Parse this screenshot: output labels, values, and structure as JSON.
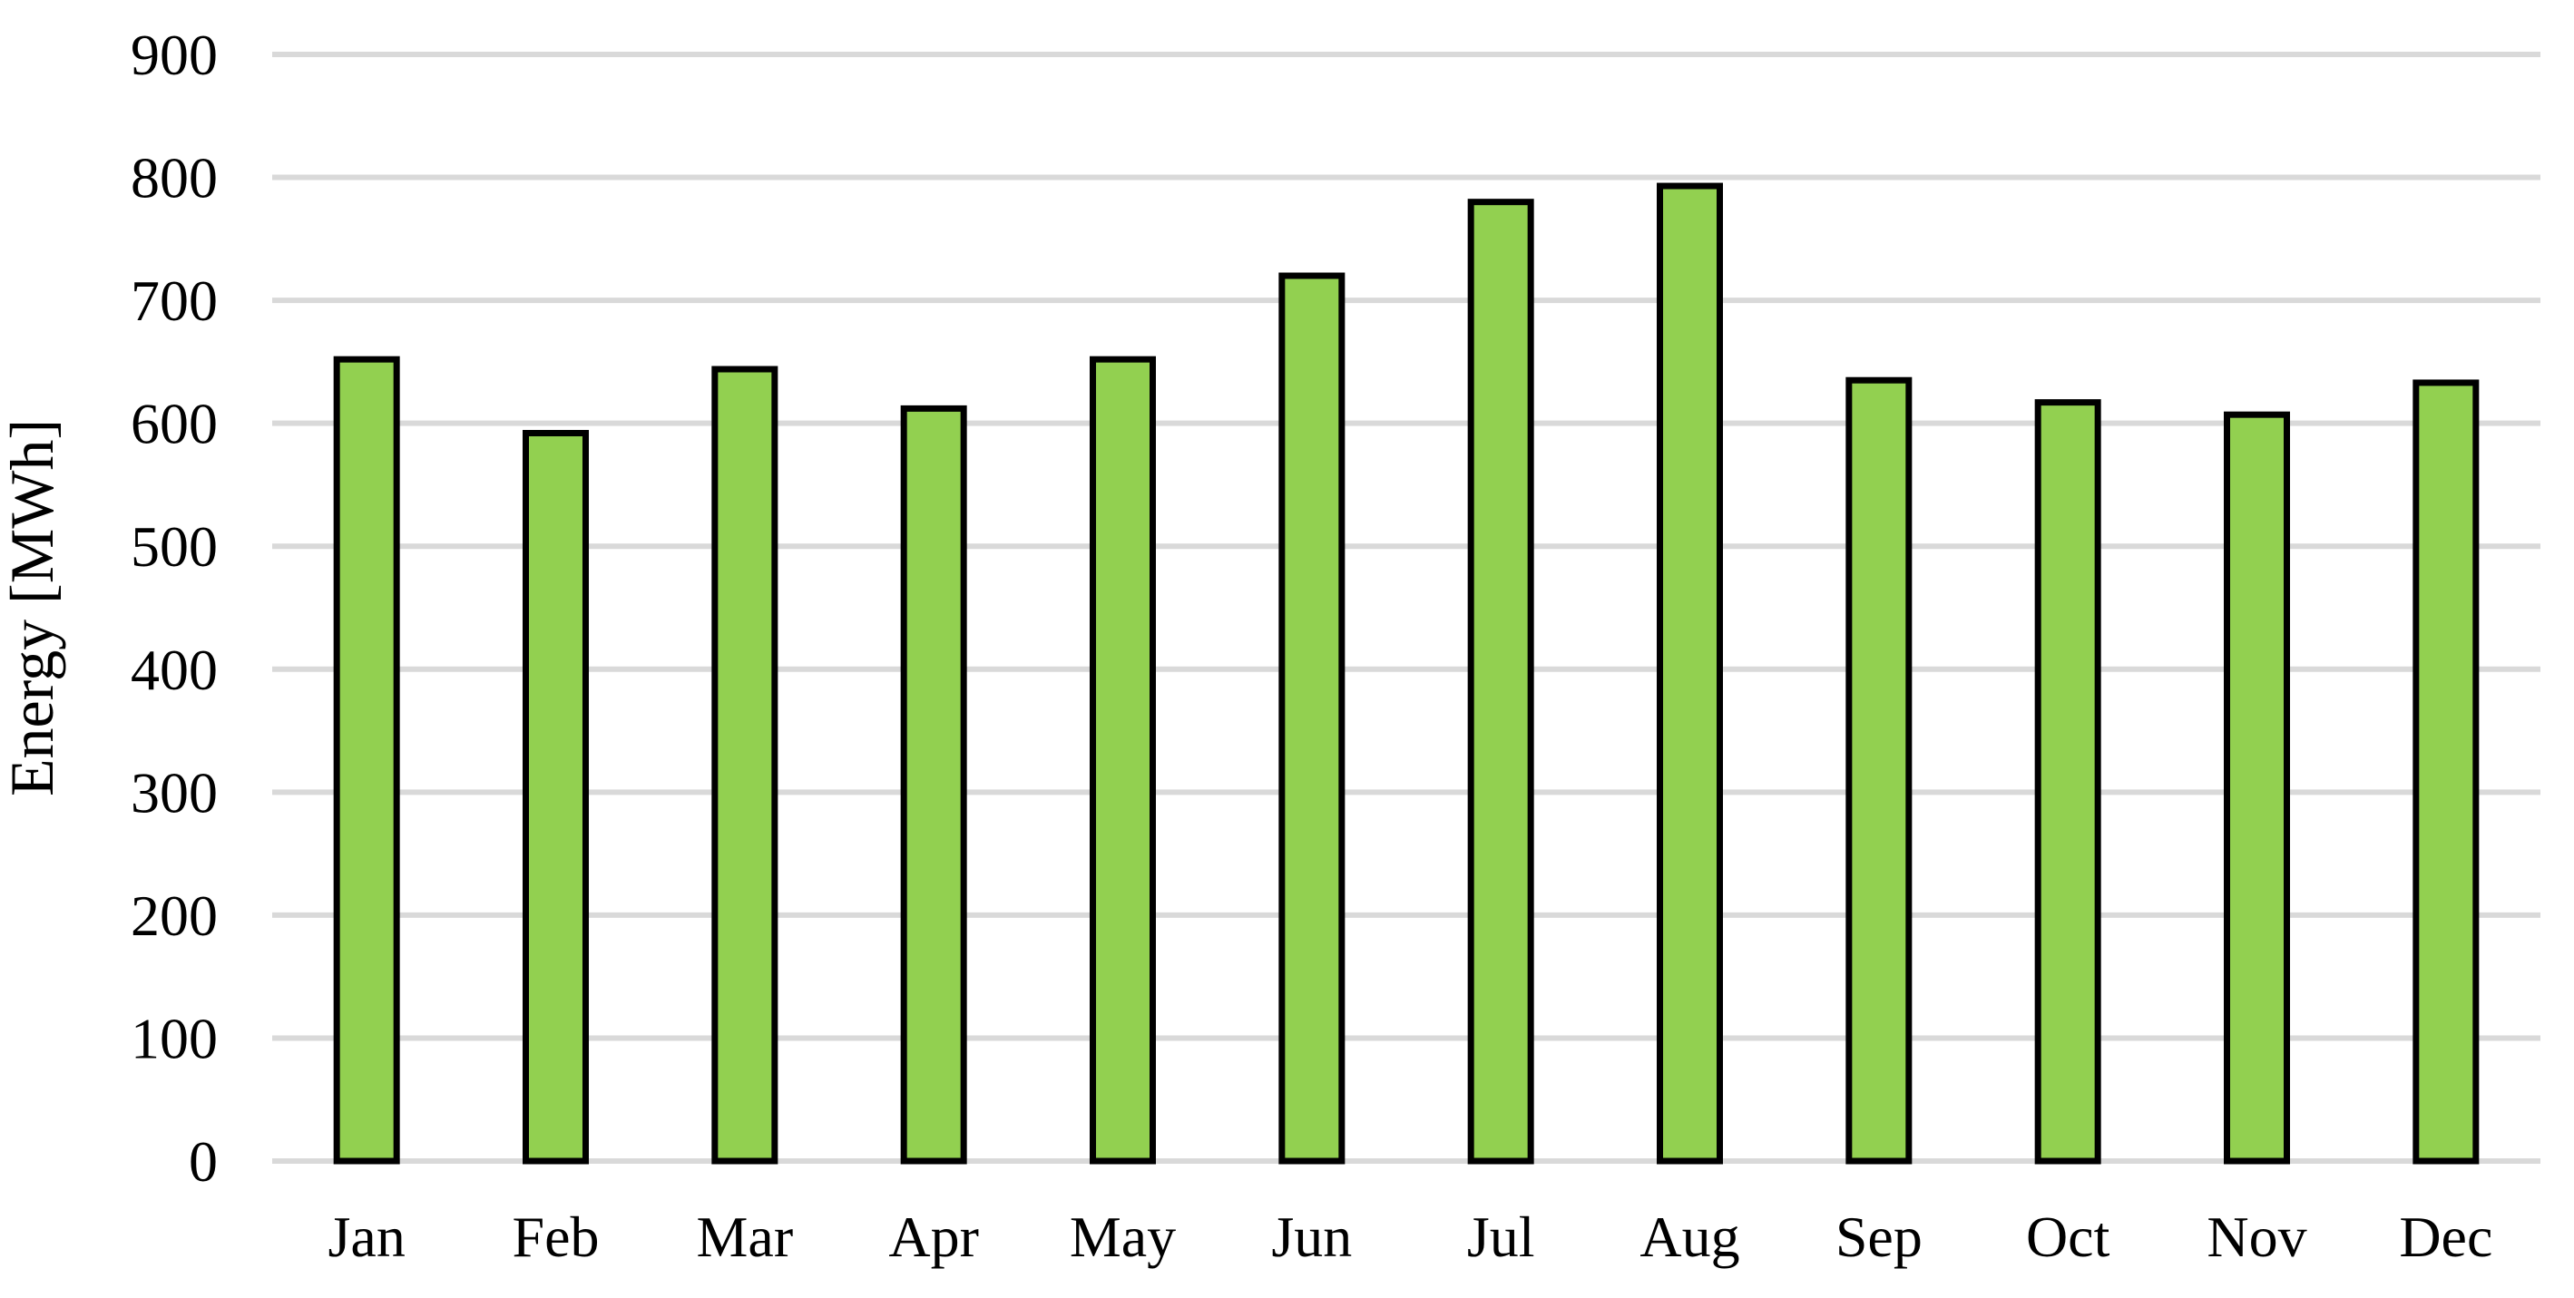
{
  "chart_data": {
    "type": "bar",
    "title": "",
    "xlabel": "",
    "ylabel": "Energy [MWh]",
    "categories": [
      "Jan",
      "Feb",
      "Mar",
      "Apr",
      "May",
      "Jun",
      "Jul",
      "Aug",
      "Sep",
      "Oct",
      "Nov",
      "Dec"
    ],
    "values": [
      652,
      592,
      644,
      612,
      652,
      720,
      780,
      793,
      635,
      617,
      607,
      633
    ],
    "ylim": [
      0,
      900
    ],
    "yticks": [
      0,
      100,
      200,
      300,
      400,
      500,
      600,
      700,
      800,
      900
    ],
    "grid": true,
    "legend": "none",
    "colors": {
      "bar_fill": "#92d050",
      "bar_stroke": "#000000",
      "grid": "#d9d9d9"
    }
  }
}
